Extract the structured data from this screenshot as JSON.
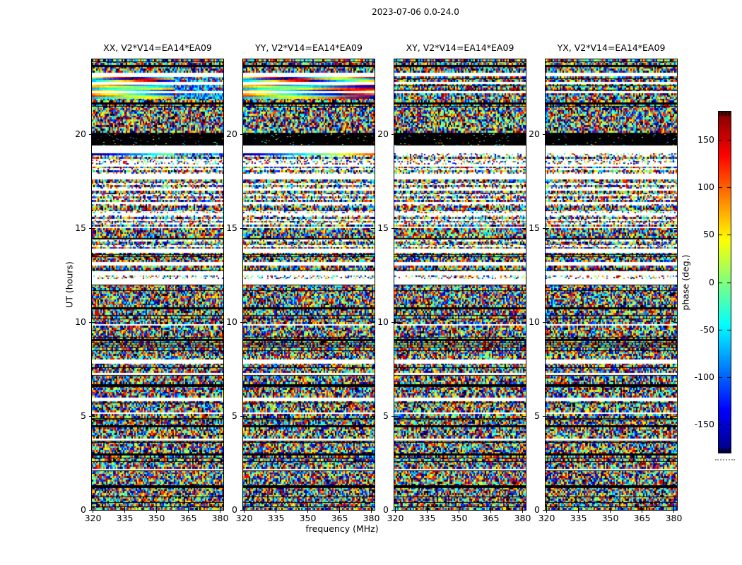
{
  "figure": {
    "suptitle": "2023-07-06 0.0-24.0",
    "background": "#ffffff",
    "text_color": "#000000",
    "axes_color": "#000000"
  },
  "chart_data": {
    "type": "heatmap",
    "title": "2023-07-06 0.0-24.0",
    "xlabel": "frequency (MHz)",
    "ylabel": "UT (hours)",
    "x_range_mhz": [
      319.5,
      381.5
    ],
    "x_ticks": [
      320,
      335,
      350,
      365,
      380
    ],
    "y_range_hours": [
      0,
      24
    ],
    "y_ticks": [
      0,
      5,
      10,
      15,
      20
    ],
    "value_label": "phase (deg.)",
    "value_range_deg": [
      -180,
      180
    ],
    "colorbar_ticks": [
      150,
      100,
      50,
      0,
      -50,
      -100,
      -150
    ],
    "colormap": "jet",
    "grid": false,
    "legend_position": "colorbar-right",
    "panels": [
      {
        "title": "XX, V2*V14=EA14*EA09",
        "pol": "XX",
        "smooth_top": "partial"
      },
      {
        "title": "YY, V2*V14=EA14*EA09",
        "pol": "YY",
        "smooth_top": "full"
      },
      {
        "title": "XY, V2*V14=EA14*EA09",
        "pol": "XY",
        "smooth_top": "none"
      },
      {
        "title": "YX, V2*V14=EA14*EA09",
        "pol": "YX",
        "smooth_top": "none"
      }
    ],
    "row_structure": {
      "legend": {
        "n": "random phase noise",
        "w": "flagged / no data (white)",
        "b": "flagged (black)",
        "B": "black with sparse colored speckles",
        "s": "coherent smooth phase gradient band (XX/YY only)"
      },
      "rows_top_to_bottom": "nnnbnnnwwssswsssswsssnnbnnnnnnnnnnnnnnnBBBBBBBwwwwsnnnnnwnnnnwwwnnnnnwnnnnnnwnnnnnwnnnnnnwnnnnnbnnnnnwwnnnnnwwnnnwwnnwwwnnnnnnnnnnnnbnnnnnnnnwnnnnnnnbnnnnnnnnnnwwnnnnnwnnnnnbnnnnnnwwnnnnnnwnnnnnnbnnnnnnwnnnnnnnbnnnnnnnwnnnnnnnnbnnnnnnnnnnnn"
    }
  }
}
